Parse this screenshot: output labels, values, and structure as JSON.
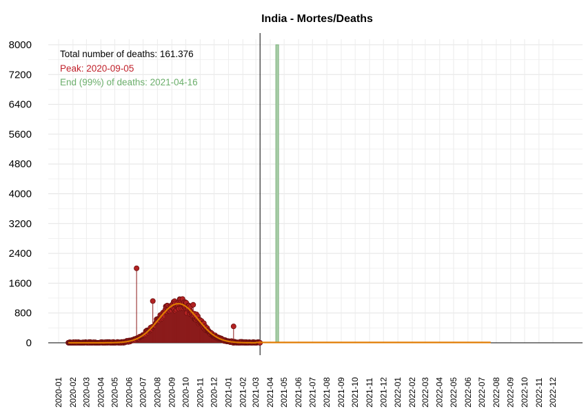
{
  "chart_data": {
    "type": "line",
    "title": "India - Mortes/Deaths",
    "xlabel": "",
    "ylabel": "",
    "ylim": [
      0,
      8000
    ],
    "yticks": [
      0,
      800,
      1600,
      2400,
      3200,
      4000,
      4800,
      5600,
      6400,
      7200,
      8000
    ],
    "xticks": [
      "2020-01",
      "2020-02",
      "2020-03",
      "2020-04",
      "2020-05",
      "2020-06",
      "2020-07",
      "2020-08",
      "2020-09",
      "2020-10",
      "2020-11",
      "2020-12",
      "2021-01",
      "2021-02",
      "2021-03",
      "2021-04",
      "2021-05",
      "2021-06",
      "2021-07",
      "2021-08",
      "2021-09",
      "2021-10",
      "2021-11",
      "2021-12",
      "2022-01",
      "2022-02",
      "2022-03",
      "2022-04",
      "2022-05",
      "2022-06",
      "2022-07",
      "2022-08",
      "2022-09",
      "2022-10",
      "2022-11",
      "2022-12"
    ],
    "grid": true,
    "annotations": {
      "total": "Total number of deaths: 161.376",
      "peak": "Peak: 2020-09-05",
      "end": "End (99%) of deaths: 2021-04-16"
    },
    "colors": {
      "points": "#b22222",
      "point_line": "#8b1a1a",
      "fit": "#e07b00",
      "peak_bar": "#d9727b",
      "end_bar": "#a9cfa9",
      "peak_text": "#c0202a",
      "end_text": "#6bae6b"
    },
    "fit_model": {
      "peak_date": "2020-09-15",
      "peak_value": 1050,
      "sigma_days": 42,
      "fit_end_date": "2022-07-20"
    },
    "today_line_date": "2021-03-10",
    "peak_bar": {
      "start": "2020-09-01",
      "end": "2020-09-10",
      "value": 1000
    },
    "end_bar": {
      "start": "2021-04-13",
      "end": "2021-04-19",
      "value": 8000
    },
    "observations": {
      "start_date": "2020-01-22",
      "end_date": "2021-03-10",
      "outliers": [
        {
          "date": "2020-06-17",
          "value": 2000
        },
        {
          "date": "2020-07-22",
          "value": 1120
        },
        {
          "date": "2020-09-09",
          "value": 850
        },
        {
          "date": "2020-10-03",
          "value": 800
        },
        {
          "date": "2020-10-17",
          "value": 1020
        },
        {
          "date": "2021-01-12",
          "value": 440
        },
        {
          "date": "2021-01-13",
          "value": 0
        }
      ]
    }
  }
}
